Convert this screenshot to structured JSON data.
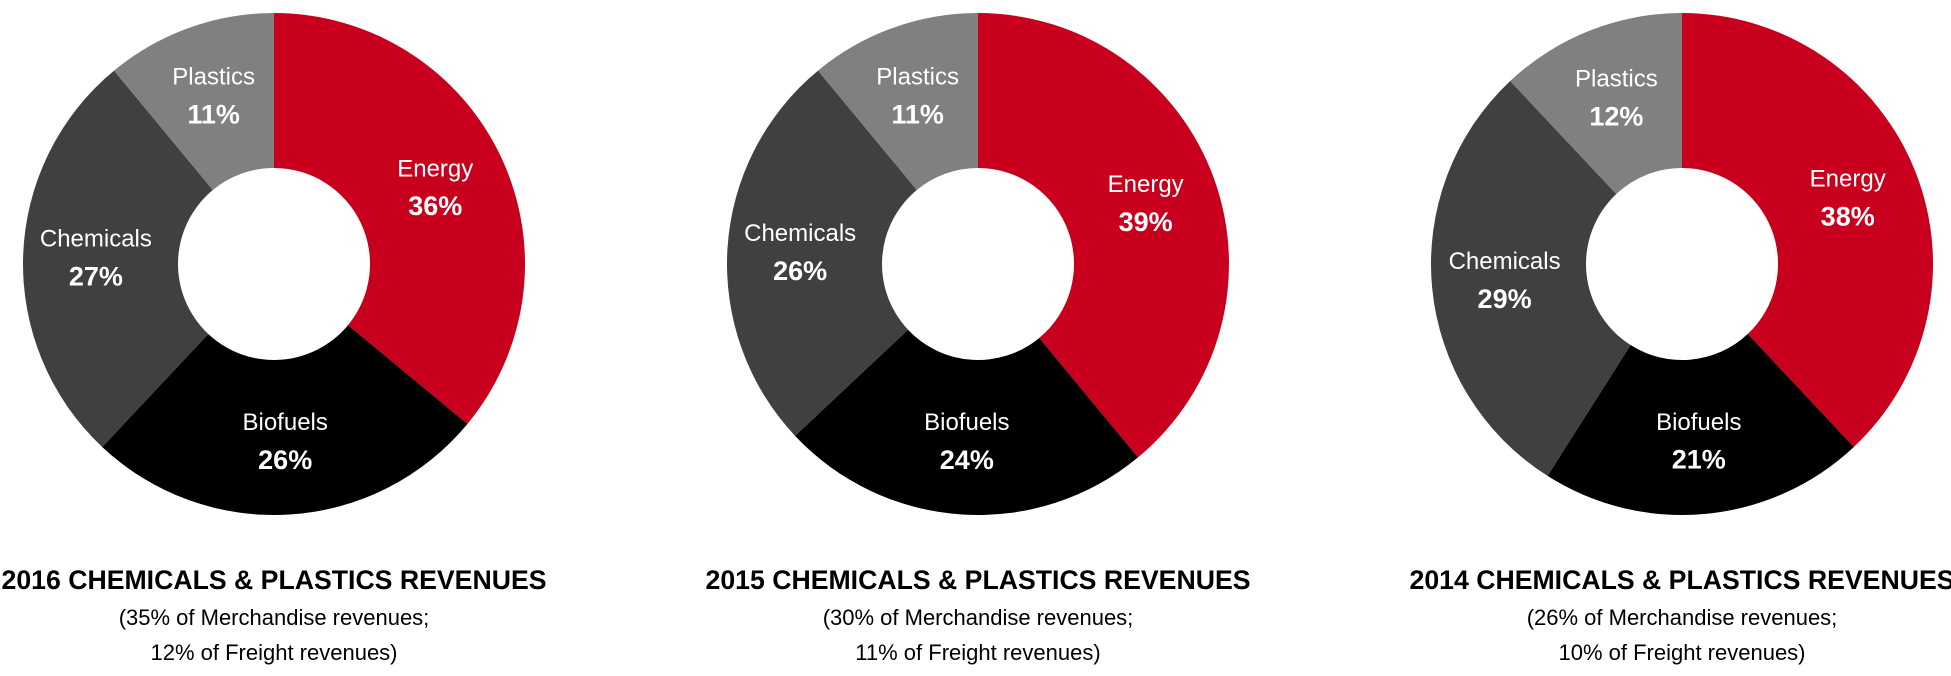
{
  "chart_data": [
    {
      "type": "pie",
      "donut": true,
      "title": "2016 CHEMICALS & PLASTICS REVENUES",
      "subtitle": [
        "(35% of Merchandise revenues;",
        "12% of Freight revenues)"
      ],
      "categories": [
        "Energy",
        "Biofuels",
        "Chemicals",
        "Plastics"
      ],
      "values": [
        36,
        26,
        27,
        11
      ],
      "value_labels": [
        "36%",
        "26%",
        "27%",
        "11%"
      ],
      "colors": [
        "#c8001e",
        "#000000",
        "#404040",
        "#808080"
      ]
    },
    {
      "type": "pie",
      "donut": true,
      "title": "2015 CHEMICALS & PLASTICS REVENUES",
      "subtitle": [
        "(30% of Merchandise revenues;",
        "11% of Freight revenues)"
      ],
      "categories": [
        "Energy",
        "Biofuels",
        "Chemicals",
        "Plastics"
      ],
      "values": [
        39,
        24,
        26,
        11
      ],
      "value_labels": [
        "39%",
        "24%",
        "26%",
        "11%"
      ],
      "colors": [
        "#c8001e",
        "#000000",
        "#404040",
        "#808080"
      ]
    },
    {
      "type": "pie",
      "donut": true,
      "title": "2014 CHEMICALS & PLASTICS REVENUES",
      "subtitle": [
        "(26% of Merchandise revenues;",
        "10% of Freight revenues)"
      ],
      "categories": [
        "Energy",
        "Biofuels",
        "Chemicals",
        "Plastics"
      ],
      "values": [
        38,
        21,
        29,
        12
      ],
      "value_labels": [
        "38%",
        "21%",
        "29%",
        "12%"
      ],
      "colors": [
        "#c8001e",
        "#000000",
        "#404040",
        "#808080"
      ]
    }
  ]
}
